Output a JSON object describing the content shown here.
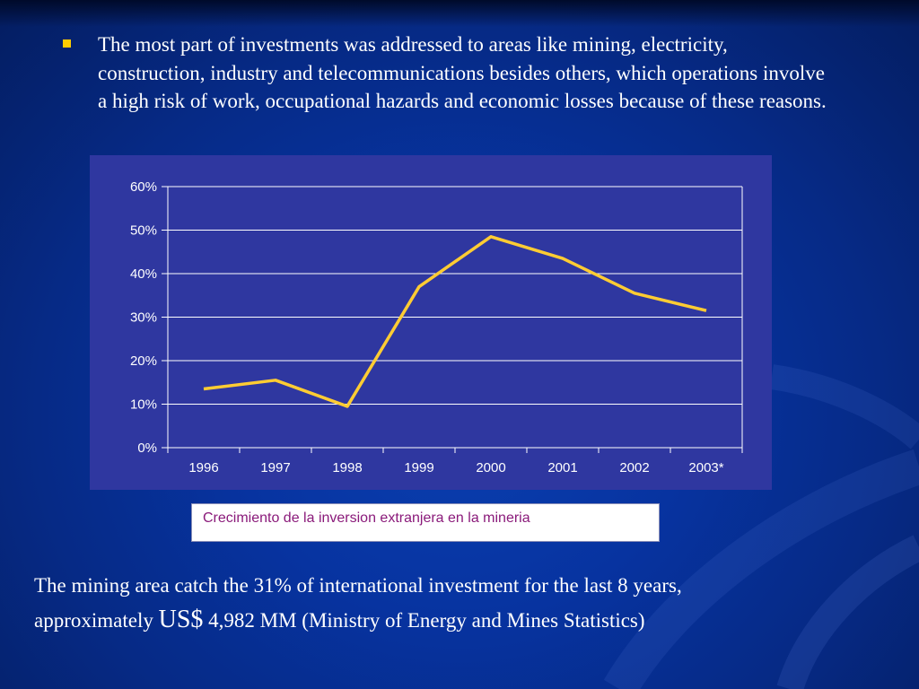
{
  "bullet": {
    "text": "The most part of investments was addressed to areas like mining, electricity, construction, industry and telecommunications besides others, which operations involve a high risk of work, occupational hazards and economic losses because of these reasons."
  },
  "caption": {
    "text": "Crecimiento de la inversion extranjera en la mineria"
  },
  "footer": {
    "line1": "The mining area catch the  31% of international investment for the last 8 years,",
    "prefix": "approximately ",
    "currency": "US$",
    "amount": " 4,982 MM (Ministry of Energy and Mines Statistics)"
  },
  "colors": {
    "line": "#ffcc33",
    "bullet": "#ffcc00",
    "panel": "#2f37a0",
    "caption_text": "#8a1a7a"
  },
  "chart_data": {
    "type": "line",
    "title": "",
    "xlabel": "",
    "ylabel": "",
    "categories": [
      "1996",
      "1997",
      "1998",
      "1999",
      "2000",
      "2001",
      "2002",
      "2003*"
    ],
    "series": [
      {
        "values": [
          13.5,
          15.5,
          9.5,
          37,
          48.5,
          43.5,
          35.5,
          31.5
        ]
      }
    ],
    "yticks": [
      "0%",
      "10%",
      "20%",
      "30%",
      "40%",
      "50%",
      "60%"
    ],
    "ylim": [
      0,
      60
    ],
    "grid": true,
    "legend": "none"
  }
}
